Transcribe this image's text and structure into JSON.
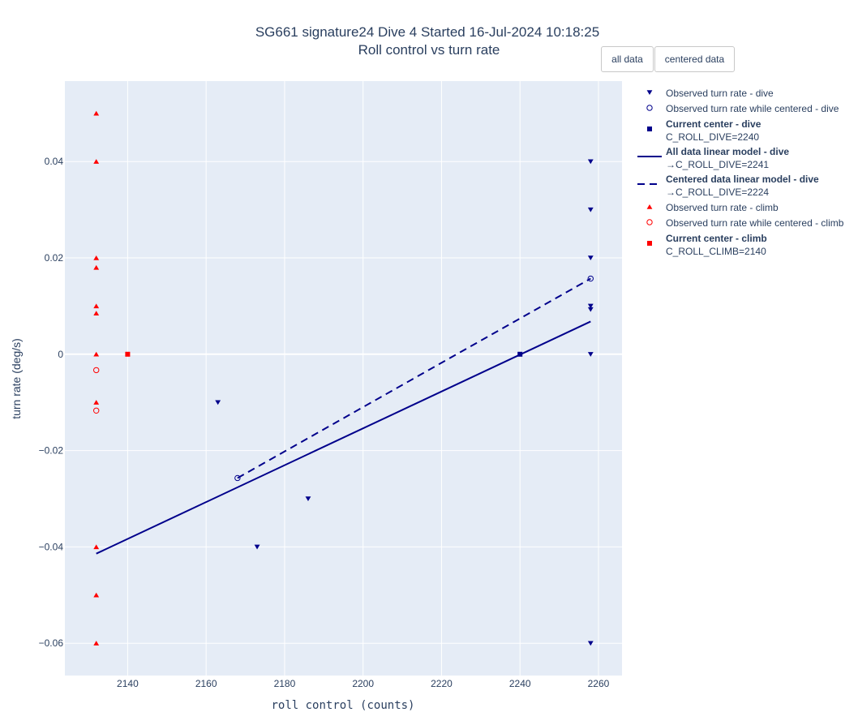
{
  "buttons": {
    "all_data": "all data",
    "centered_data": "centered data"
  },
  "chart_data": {
    "type": "scatter",
    "title": "SG661 signature24 Dive 4 Started 16-Jul-2024 10:18:25",
    "subtitle": "Roll control vs turn rate",
    "xlabel": "roll control (counts)",
    "ylabel": "turn rate (deg/s)",
    "xlim": [
      2124,
      2266
    ],
    "ylim": [
      -0.0667,
      0.0567
    ],
    "xticks": [
      2140,
      2160,
      2180,
      2200,
      2220,
      2240,
      2260
    ],
    "xtick_labels": [
      "2140",
      "2160",
      "2180",
      "2200",
      "2220",
      "2240",
      "2260"
    ],
    "yticks": [
      -0.06,
      -0.04,
      -0.02,
      0,
      0.02,
      0.04
    ],
    "ytick_labels": [
      "−0.06",
      "−0.04",
      "−0.02",
      "0",
      "0.02",
      "0.04"
    ],
    "grid": true,
    "legend_position": "right",
    "colors": {
      "dive": "#00008b",
      "climb": "#ff0000",
      "plot_bg": "#e5ecf6",
      "grid": "#ffffff"
    },
    "series": [
      {
        "name": "Observed turn rate - dive",
        "mode": "markers",
        "marker": "triangle-down",
        "color": "#00008b",
        "x": [
          2163,
          2173,
          2186,
          2258,
          2258,
          2258,
          2258,
          2258,
          2258,
          2258
        ],
        "y": [
          -0.01,
          -0.04,
          -0.03,
          0.04,
          0.03,
          0.02,
          0.01,
          0.0093,
          0.0,
          -0.06
        ]
      },
      {
        "name": "Observed turn rate while centered - dive",
        "mode": "markers",
        "marker": "circle-open",
        "color": "#00008b",
        "x": [
          2168,
          2258
        ],
        "y": [
          -0.0257,
          0.0157
        ]
      },
      {
        "name": "Current center - dive",
        "name2": "C_ROLL_DIVE=2240",
        "mode": "markers",
        "marker": "square",
        "color": "#00008b",
        "x": [
          2240
        ],
        "y": [
          0
        ]
      },
      {
        "name": "All data linear model - dive",
        "name2": "→C_ROLL_DIVE=2241",
        "mode": "lines",
        "dash": "solid",
        "color": "#00008b",
        "x": [
          2132,
          2258
        ],
        "y": [
          -0.0414,
          0.0068
        ]
      },
      {
        "name": "Centered data linear model - dive",
        "name2": "→C_ROLL_DIVE=2224",
        "mode": "lines",
        "dash": "dash",
        "color": "#00008b",
        "x": [
          2168,
          2258
        ],
        "y": [
          -0.0257,
          0.0157
        ]
      },
      {
        "name": "Observed turn rate - climb",
        "mode": "markers",
        "marker": "triangle-up",
        "color": "#ff0000",
        "x": [
          2132,
          2132,
          2132,
          2132,
          2132,
          2132,
          2132,
          2132,
          2132,
          2132,
          2132
        ],
        "y": [
          0.05,
          0.04,
          0.02,
          0.018,
          0.01,
          0.0085,
          0.0,
          -0.01,
          -0.04,
          -0.05,
          -0.06
        ]
      },
      {
        "name": "Observed turn rate while centered - climb",
        "mode": "markers",
        "marker": "circle-open",
        "color": "#ff0000",
        "x": [
          2132,
          2132
        ],
        "y": [
          -0.0033,
          -0.0117
        ]
      },
      {
        "name": "Current center - climb",
        "name2": "C_ROLL_CLIMB=2140",
        "mode": "markers",
        "marker": "square",
        "color": "#ff0000",
        "x": [
          2140
        ],
        "y": [
          0
        ]
      }
    ]
  }
}
